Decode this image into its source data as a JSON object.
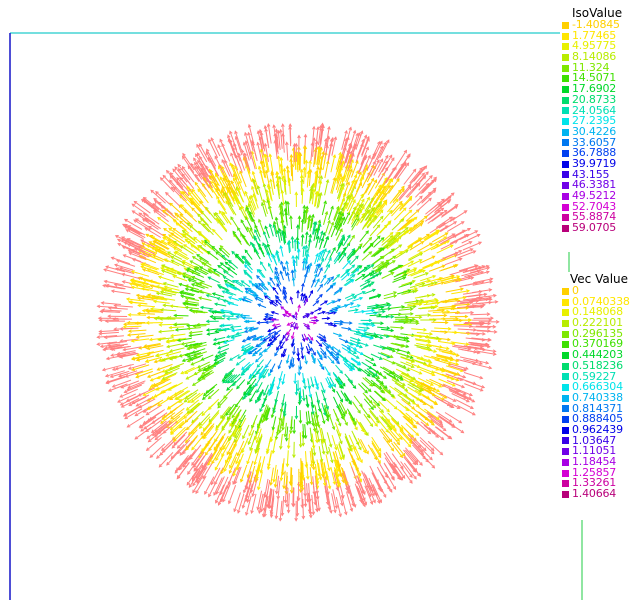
{
  "iso_legend": {
    "title": "IsoValue",
    "entries": [
      {
        "label": "-1.40845",
        "color": "#ffd000"
      },
      {
        "label": "1.77465",
        "color": "#ffe600"
      },
      {
        "label": "4.95775",
        "color": "#e8f000"
      },
      {
        "label": "8.14086",
        "color": "#b8ec00"
      },
      {
        "label": "11.324",
        "color": "#7ee800"
      },
      {
        "label": "14.5071",
        "color": "#3ee000"
      },
      {
        "label": "17.6902",
        "color": "#00d82a"
      },
      {
        "label": "20.8733",
        "color": "#00dc6e"
      },
      {
        "label": "24.0564",
        "color": "#00e0b4"
      },
      {
        "label": "27.2395",
        "color": "#00e4ea"
      },
      {
        "label": "30.4226",
        "color": "#00b4f0"
      },
      {
        "label": "33.6057",
        "color": "#0078f0"
      },
      {
        "label": "36.7888",
        "color": "#0040f0"
      },
      {
        "label": "39.9719",
        "color": "#0000e8"
      },
      {
        "label": "43.155",
        "color": "#3800e8"
      },
      {
        "label": "46.3381",
        "color": "#7000e8"
      },
      {
        "label": "49.5212",
        "color": "#a800e4"
      },
      {
        "label": "52.7043",
        "color": "#d400d4"
      },
      {
        "label": "55.8874",
        "color": "#cc00a0"
      },
      {
        "label": "59.0705",
        "color": "#b8007a"
      }
    ]
  },
  "vec_legend": {
    "title": "Vec Value",
    "entries": [
      {
        "label": "0",
        "color": "#ffd000"
      },
      {
        "label": "0.0740338",
        "color": "#ffe600"
      },
      {
        "label": "0.148068",
        "color": "#e8f000"
      },
      {
        "label": "0.222101",
        "color": "#b8ec00"
      },
      {
        "label": "0.296135",
        "color": "#7ee800"
      },
      {
        "label": "0.370169",
        "color": "#3ee000"
      },
      {
        "label": "0.444203",
        "color": "#00d82a"
      },
      {
        "label": "0.518236",
        "color": "#00dc6e"
      },
      {
        "label": "0.59227",
        "color": "#00e0b4"
      },
      {
        "label": "0.666304",
        "color": "#00e4ea"
      },
      {
        "label": "0.740338",
        "color": "#00b4f0"
      },
      {
        "label": "0.814371",
        "color": "#0078f0"
      },
      {
        "label": "0.888405",
        "color": "#0040f0"
      },
      {
        "label": "0.962439",
        "color": "#0000e8"
      },
      {
        "label": "1.03647",
        "color": "#3800e8"
      },
      {
        "label": "1.11051",
        "color": "#7000e8"
      },
      {
        "label": "1.18454",
        "color": "#a800e4"
      },
      {
        "label": "1.25857",
        "color": "#d400d4"
      },
      {
        "label": "1.33261",
        "color": "#cc00a0"
      },
      {
        "label": "1.40664",
        "color": "#b8007a"
      }
    ]
  },
  "colors": {
    "frame_top": "#22cccc",
    "frame_left": "#2222cc",
    "frame_right": "#22cc44",
    "outer_arrows": "#ff8080"
  }
}
